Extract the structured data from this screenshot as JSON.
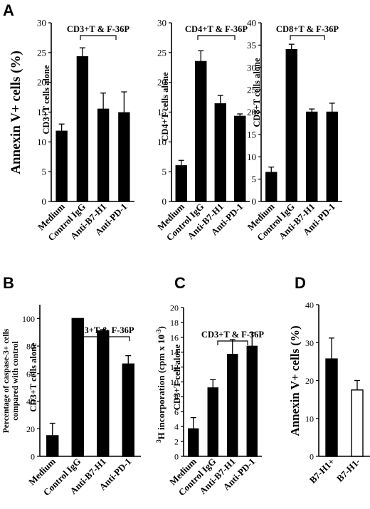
{
  "figure": {
    "panel_letters": [
      "A",
      "B",
      "C",
      "D"
    ]
  },
  "chart_data": [
    {
      "panel": "A",
      "type": "bar",
      "categories": [
        "Medium",
        "Control IgG",
        "Anti-B7-H1",
        "Anti-PD-1"
      ],
      "values": [
        11.8,
        24.3,
        15.5,
        14.9
      ],
      "errors": [
        1.2,
        1.5,
        2.7,
        3.5
      ],
      "ylim": [
        0,
        30
      ],
      "yticks": [
        0,
        5,
        10,
        15,
        20,
        25,
        30
      ],
      "ylabel": "Annexin V+ cells (%)",
      "bracket_label": "CD3+T & F-36P",
      "inner_label": "CD3+T cells alone",
      "colors": [
        "#000000"
      ]
    },
    {
      "panel": "A",
      "type": "bar",
      "categories": [
        "Medium",
        "Control IgG",
        "Anti-B7-H1",
        "Anti-PD-1"
      ],
      "values": [
        6.0,
        23.5,
        16.4,
        14.3
      ],
      "errors": [
        0.9,
        1.8,
        1.4,
        0.4
      ],
      "ylim": [
        0,
        30
      ],
      "yticks": [
        0,
        5,
        10,
        15,
        20,
        25,
        30
      ],
      "ylabel": "",
      "bracket_label": "CD4+T & F-36P",
      "inner_label": "CD4+T cells alone",
      "colors": [
        "#000000"
      ]
    },
    {
      "panel": "A",
      "type": "bar",
      "categories": [
        "Medium",
        "Control IgG",
        "Anti-B7-H1",
        "Anti-PD-1"
      ],
      "values": [
        6.5,
        34.0,
        20.0,
        20.0
      ],
      "errors": [
        1.2,
        1.2,
        0.7,
        2.0
      ],
      "ylim": [
        0,
        40
      ],
      "yticks": [
        0,
        5,
        10,
        15,
        20,
        25,
        30,
        35,
        40
      ],
      "ylabel": "",
      "bracket_label": "CD8+T & F-36P",
      "inner_label": "CD8+T cells alone",
      "colors": [
        "#000000"
      ]
    },
    {
      "panel": "B",
      "type": "bar",
      "categories": [
        "Medium",
        "Control IgG",
        "Anti-B7-H1",
        "Anti-PD-1"
      ],
      "values": [
        15,
        100,
        91,
        67
      ],
      "errors": [
        9,
        0,
        1,
        6
      ],
      "ylim": [
        0,
        110
      ],
      "yticks": [
        0,
        20,
        40,
        60,
        80,
        100
      ],
      "ylabel": "Percentage of caspase-3+ cells compared with control",
      "ylabel_lines": [
        "Percentage of caspase-3+ cells",
        "compared with control"
      ],
      "bracket_label": "CD3+T & F-36P",
      "inner_label": "CD3+T cells alone",
      "colors": [
        "#000000"
      ]
    },
    {
      "panel": "C",
      "type": "bar",
      "categories": [
        "Medium",
        "Control IgG",
        "Anti-B7-H1",
        "Anti-PD-1"
      ],
      "values": [
        3.7,
        9.2,
        13.7,
        14.8
      ],
      "errors": [
        1.5,
        1.1,
        2.0,
        1.8
      ],
      "ylim": [
        0,
        20
      ],
      "yticks": [
        0,
        2,
        4,
        6,
        8,
        10,
        12,
        14,
        16,
        18,
        20
      ],
      "ylabel": "3H incorporation (cpm x 10-3)",
      "ylabel_sup": "3",
      "ylabel_main": "H incorporation (cpm x 10",
      "ylabel_exp": "-3",
      "ylabel_close": ")",
      "bracket_label": "CD3+T & F-36P",
      "inner_label": "CD3+T cell alone",
      "colors": [
        "#000000"
      ]
    },
    {
      "panel": "D",
      "type": "bar",
      "categories": [
        "B7-H1+",
        "B7-H1-"
      ],
      "values": [
        25.7,
        17.5
      ],
      "errors": [
        5.5,
        2.5
      ],
      "ylim": [
        0,
        40
      ],
      "yticks": [
        0,
        10,
        20,
        30,
        40
      ],
      "ylabel": "Annexin V+ cells (%)",
      "colors": [
        "#000000",
        "#ffffff"
      ]
    }
  ]
}
